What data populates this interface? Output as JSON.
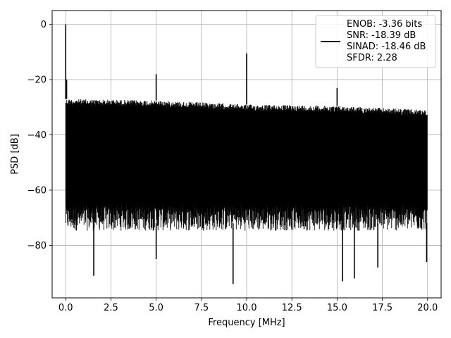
{
  "chart_data": {
    "type": "line",
    "title": "",
    "xlabel": "Frequency [MHz]",
    "ylabel": "PSD [dB]",
    "xlim": [
      -0.75,
      20.75
    ],
    "ylim": [
      -99,
      5
    ],
    "xticks": [
      0.0,
      2.5,
      5.0,
      7.5,
      10.0,
      12.5,
      15.0,
      17.5,
      20.0
    ],
    "xtick_labels": [
      "0.0",
      "2.5",
      "5.0",
      "7.5",
      "10.0",
      "12.5",
      "15.0",
      "17.5",
      "20.0"
    ],
    "yticks": [
      0,
      -20,
      -40,
      -60,
      -80
    ],
    "ytick_labels": [
      "0",
      "−20",
      "−40",
      "−60",
      "−80"
    ],
    "grid": true,
    "line_color": "#000000",
    "legend": {
      "placement": "top-right",
      "entries": [
        "ENOB: -3.36 bits",
        "SNR: -18.39 dB",
        "SINAD: -18.46 dB",
        "SFDR: 2.28"
      ]
    },
    "series": [
      {
        "x_range": [
          0,
          20
        ],
        "noise_ceiling": [
          [
            0.0,
            -27
          ],
          [
            5.0,
            -27.5
          ],
          [
            10.0,
            -29
          ],
          [
            15.0,
            -29.5
          ],
          [
            20.0,
            -31
          ]
        ],
        "noise_floor_typical": -72,
        "peaks": [
          {
            "x": 0.0,
            "y": 0
          },
          {
            "x": 0.05,
            "y": -20
          },
          {
            "x": 5.0,
            "y": -18
          },
          {
            "x": 10.0,
            "y": -10.5
          },
          {
            "x": 15.0,
            "y": -23
          }
        ],
        "deep_dips": [
          {
            "x": 1.55,
            "y": -91
          },
          {
            "x": 5.0,
            "y": -85
          },
          {
            "x": 9.25,
            "y": -94
          },
          {
            "x": 15.3,
            "y": -93
          },
          {
            "x": 15.95,
            "y": -92
          },
          {
            "x": 17.25,
            "y": -88
          },
          {
            "x": 19.95,
            "y": -86
          }
        ]
      }
    ]
  }
}
